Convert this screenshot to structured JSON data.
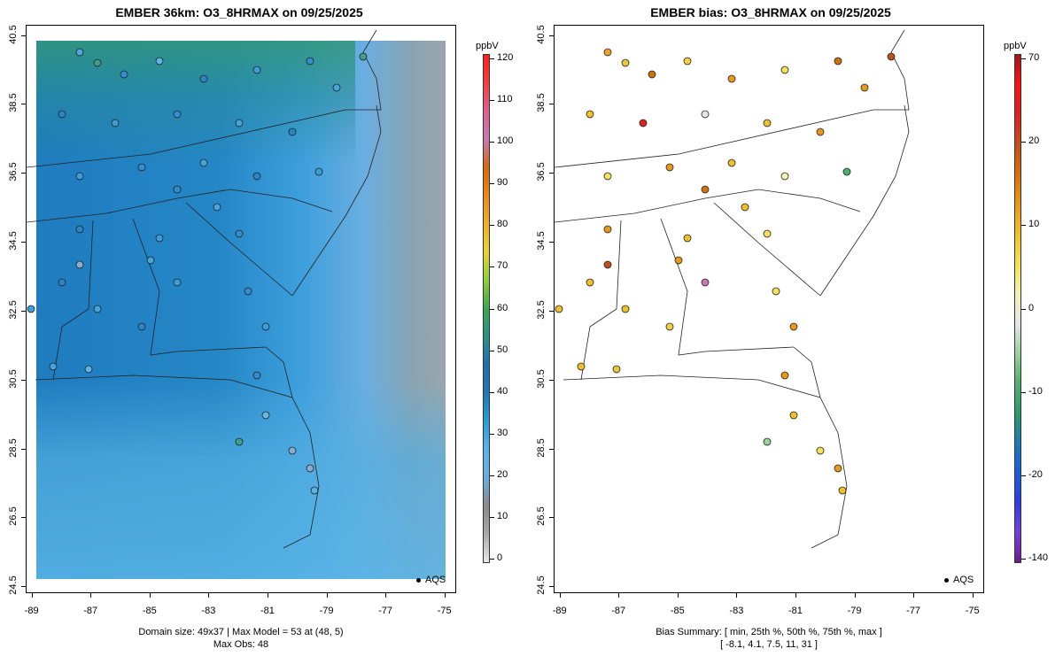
{
  "panels": [
    {
      "title": "EMBER 36km: O3_8HRMAX on 09/25/2025",
      "caption_lines": [
        "Domain size: 49x37 | Max Model = 53 at (48, 5)",
        "Max Obs: 48"
      ],
      "legend_label": "AQS",
      "colorbar": {
        "unit": "ppbV",
        "labels": [
          "120",
          "110",
          "100",
          "90",
          "80",
          "70",
          "60",
          "50",
          "40",
          "30",
          "20",
          "10",
          "0"
        ],
        "stops": [
          "#e8e8e8",
          "#a8a8a8",
          "#8a8a8a",
          "#6aaee0",
          "#58b4ec",
          "#2f9ad8",
          "#1f78b4",
          "#1e6fae",
          "#2b8f8a",
          "#3ba94e",
          "#8ccf3c",
          "#e6d23a",
          "#f0b02a",
          "#e8881e",
          "#d46a10",
          "#c87ab0",
          "#dd6090",
          "#f04040",
          "#ff1e1e"
        ]
      }
    },
    {
      "title": "EMBER bias: O3_8HRMAX on 09/25/2025",
      "caption_lines": [
        "Bias Summary: [ min, 25th %, 50th %, 75th %, max ]",
        "[ -8.1,   4.1,   7.5,   11,   31 ]"
      ],
      "legend_label": "AQS",
      "colorbar": {
        "unit": "ppbV",
        "labels": [
          "70",
          "20",
          "10",
          "0",
          "-10",
          "-20",
          "-140"
        ],
        "stops": [
          "#6a1c8c",
          "#7a3fd8",
          "#2b3fe0",
          "#1a5ed8",
          "#1e79b2",
          "#2e9a6a",
          "#50b070",
          "#9ad0a0",
          "#e6e6e6",
          "#f3f0b0",
          "#f5e05a",
          "#f0c02a",
          "#e8981a",
          "#d4700e",
          "#c0501a",
          "#e02020",
          "#ff1010",
          "#a01818"
        ]
      }
    }
  ],
  "axes": {
    "x_ticks": [
      "-89",
      "-87",
      "-85",
      "-83",
      "-81",
      "-79",
      "-77",
      "-75"
    ],
    "y_ticks": [
      "40.5",
      "38.5",
      "36.5",
      "34.5",
      "32.5",
      "30.5",
      "28.5",
      "26.5",
      "24.5"
    ],
    "lon_range": [
      -89.2,
      -74.6
    ],
    "lat_range": [
      24.3,
      40.8
    ]
  },
  "chart_data": [
    {
      "type": "map",
      "title": "EMBER 36km: O3_8HRMAX on 09/25/2025",
      "field": "O3_8HRMAX",
      "unit": "ppbV",
      "domain": "49x37",
      "max_model": 53,
      "max_model_cell": [
        48,
        5
      ],
      "max_obs": 48,
      "colorbar_range": [
        0,
        120
      ],
      "observation_network": "AQS"
    },
    {
      "type": "map",
      "title": "EMBER bias: O3_8HRMAX on 09/25/2025",
      "field": "bias",
      "unit": "ppbV",
      "bias_summary": {
        "min": -8.1,
        "p25": 4.1,
        "p50": 7.5,
        "p75": 11,
        "max": 31
      },
      "colorbar_range": [
        -140,
        70
      ],
      "observation_network": "AQS"
    }
  ]
}
